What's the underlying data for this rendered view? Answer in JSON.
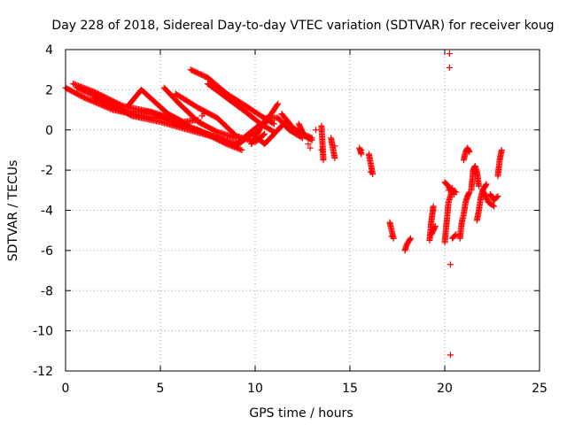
{
  "chart_data": {
    "type": "scatter",
    "title": "Day 228 of 2018, Sidereal Day-to-day VTEC variation (SDTVAR) for receiver koug",
    "xlabel": "GPS time / hours",
    "ylabel": "SDTVAR / TECUs",
    "xlim": [
      0,
      25
    ],
    "ylim": [
      -12,
      4
    ],
    "xticks": [
      0,
      5,
      10,
      15,
      20,
      25
    ],
    "yticks": [
      -12,
      -10,
      -8,
      -6,
      -4,
      -2,
      0,
      2,
      4
    ],
    "grid": true,
    "marker": "plus",
    "colors": {
      "points": "#ff0000",
      "grid": "#a0a0a0",
      "axes": "#000000"
    },
    "tracks": [
      {
        "name": "track-1",
        "x_start": 0.0,
        "x_end": 9.3,
        "points": [
          [
            0.0,
            2.1
          ],
          [
            1.0,
            1.6
          ],
          [
            2.5,
            1.0
          ],
          [
            4.0,
            0.7
          ],
          [
            5.5,
            0.5
          ],
          [
            7.0,
            0.0
          ],
          [
            8.5,
            -0.7
          ],
          [
            9.3,
            -1.0
          ]
        ]
      },
      {
        "name": "track-2",
        "x_start": 0.4,
        "x_end": 10.3,
        "points": [
          [
            0.4,
            2.3
          ],
          [
            1.5,
            1.9
          ],
          [
            3.0,
            1.2
          ],
          [
            4.5,
            0.9
          ],
          [
            6.0,
            0.3
          ],
          [
            7.5,
            -0.2
          ],
          [
            9.0,
            -0.7
          ],
          [
            10.3,
            0.3
          ]
        ]
      },
      {
        "name": "track-3",
        "x_start": 0.6,
        "x_end": 11.2,
        "points": [
          [
            0.6,
            2.1
          ],
          [
            2.0,
            1.5
          ],
          [
            3.5,
            0.7
          ],
          [
            5.0,
            0.4
          ],
          [
            6.5,
            0.0
          ],
          [
            8.0,
            -0.4
          ],
          [
            9.0,
            -0.8
          ],
          [
            10.5,
            0.3
          ],
          [
            11.2,
            1.3
          ]
        ]
      },
      {
        "name": "track-4",
        "x_start": 1.5,
        "x_end": 6.5,
        "points": [
          [
            1.5,
            1.6
          ],
          [
            2.5,
            1.1
          ],
          [
            3.3,
            0.9
          ],
          [
            4.5,
            0.9
          ],
          [
            5.5,
            0.6
          ],
          [
            6.5,
            0.2
          ]
        ]
      },
      {
        "name": "track-5",
        "x_start": 3.3,
        "x_end": 7.0,
        "points": [
          [
            3.3,
            1.2
          ],
          [
            4.0,
            2.0
          ],
          [
            4.7,
            1.4
          ],
          [
            5.4,
            0.8
          ],
          [
            6.2,
            0.4
          ],
          [
            7.0,
            0.5
          ]
        ]
      },
      {
        "name": "track-6",
        "x_start": 5.2,
        "x_end": 9.0,
        "points": [
          [
            5.2,
            2.1
          ],
          [
            6.0,
            1.3
          ],
          [
            7.0,
            0.4
          ],
          [
            8.0,
            -0.1
          ],
          [
            9.0,
            -0.4
          ]
        ]
      },
      {
        "name": "track-7",
        "x_start": 5.8,
        "x_end": 10.5,
        "points": [
          [
            5.8,
            1.8
          ],
          [
            7.0,
            1.1
          ],
          [
            8.0,
            0.6
          ],
          [
            9.0,
            -0.3
          ],
          [
            10.0,
            -0.6
          ],
          [
            10.5,
            -0.2
          ]
        ]
      },
      {
        "name": "track-8",
        "x_start": 6.6,
        "x_end": 11.0,
        "points": [
          [
            6.6,
            3.0
          ],
          [
            7.5,
            2.6
          ],
          [
            8.5,
            1.8
          ],
          [
            9.5,
            1.2
          ],
          [
            10.3,
            0.7
          ],
          [
            11.0,
            0.3
          ]
        ]
      },
      {
        "name": "track-9",
        "x_start": 7.5,
        "x_end": 11.0,
        "points": [
          [
            7.5,
            2.3
          ],
          [
            8.5,
            1.6
          ],
          [
            9.5,
            0.9
          ],
          [
            10.3,
            0.3
          ],
          [
            11.0,
            -0.1
          ]
        ]
      },
      {
        "name": "track-10",
        "x_start": 9.8,
        "x_end": 12.5,
        "points": [
          [
            9.8,
            -0.7
          ],
          [
            10.6,
            0.6
          ],
          [
            11.2,
            0.6
          ],
          [
            11.8,
            0.0
          ],
          [
            12.5,
            -0.4
          ]
        ]
      },
      {
        "name": "track-11",
        "x_start": 10.0,
        "x_end": 11.6,
        "points": [
          [
            10.0,
            -0.3
          ],
          [
            10.5,
            -0.7
          ],
          [
            11.0,
            -0.2
          ],
          [
            11.6,
            0.4
          ]
        ]
      },
      {
        "name": "track-12",
        "x_start": 11.4,
        "x_end": 13.0,
        "points": [
          [
            11.4,
            0.8
          ],
          [
            12.0,
            0.1
          ],
          [
            12.5,
            -0.2
          ],
          [
            13.0,
            -0.4
          ]
        ]
      },
      {
        "name": "track-13",
        "x_start": 12.3,
        "x_end": 13.0,
        "points": [
          [
            12.3,
            0.3
          ],
          [
            12.6,
            -0.3
          ],
          [
            13.0,
            -0.5
          ]
        ]
      },
      {
        "name": "track-14",
        "x_start": 13.5,
        "x_end": 13.6,
        "points": [
          [
            13.5,
            0.2
          ],
          [
            13.6,
            -1.5
          ]
        ]
      },
      {
        "name": "track-15",
        "x_start": 14.0,
        "x_end": 14.2,
        "points": [
          [
            14.0,
            -0.4
          ],
          [
            14.2,
            -1.4
          ]
        ]
      },
      {
        "name": "track-16",
        "x_start": 15.5,
        "x_end": 15.6,
        "points": [
          [
            15.5,
            -0.9
          ],
          [
            15.6,
            -1.2
          ]
        ]
      },
      {
        "name": "track-17",
        "x_start": 16.0,
        "x_end": 16.2,
        "points": [
          [
            16.0,
            -1.2
          ],
          [
            16.2,
            -2.2
          ]
        ]
      },
      {
        "name": "track-18",
        "x_start": 17.1,
        "x_end": 17.3,
        "points": [
          [
            17.1,
            -4.6
          ],
          [
            17.2,
            -5.0
          ],
          [
            17.3,
            -5.4
          ]
        ]
      },
      {
        "name": "track-19",
        "x_start": 17.9,
        "x_end": 18.2,
        "points": [
          [
            17.9,
            -6.0
          ],
          [
            18.0,
            -5.7
          ],
          [
            18.2,
            -5.4
          ]
        ]
      },
      {
        "name": "track-20",
        "x_start": 19.2,
        "x_end": 19.4,
        "points": [
          [
            19.2,
            -5.5
          ],
          [
            19.3,
            -4.5
          ],
          [
            19.4,
            -3.8
          ]
        ]
      },
      {
        "name": "track-21",
        "x_start": 19.3,
        "x_end": 19.5,
        "points": [
          [
            19.3,
            -5.2
          ],
          [
            19.5,
            -4.8
          ]
        ]
      },
      {
        "name": "track-22",
        "x_start": 20.0,
        "x_end": 20.6,
        "points": [
          [
            20.0,
            -5.6
          ],
          [
            20.1,
            -4.6
          ],
          [
            20.2,
            -3.6
          ],
          [
            20.4,
            -3.0
          ],
          [
            20.6,
            -3.1
          ]
        ]
      },
      {
        "name": "track-23",
        "x_start": 20.0,
        "x_end": 20.3,
        "points": [
          [
            20.0,
            -2.6
          ],
          [
            20.2,
            -2.8
          ],
          [
            20.3,
            -3.0
          ]
        ]
      },
      {
        "name": "track-24",
        "x_start": 20.4,
        "x_end": 20.6,
        "points": [
          [
            20.4,
            -5.4
          ],
          [
            20.5,
            -5.3
          ],
          [
            20.6,
            -5.2
          ]
        ]
      },
      {
        "name": "track-25",
        "x_start": 20.8,
        "x_end": 21.3,
        "points": [
          [
            20.8,
            -5.4
          ],
          [
            20.9,
            -4.6
          ],
          [
            21.0,
            -4.2
          ],
          [
            21.1,
            -3.6
          ],
          [
            21.2,
            -3.3
          ],
          [
            21.3,
            -3.1
          ]
        ]
      },
      {
        "name": "track-26",
        "x_start": 21.0,
        "x_end": 21.3,
        "points": [
          [
            21.0,
            -1.5
          ],
          [
            21.1,
            -1.1
          ],
          [
            21.2,
            -0.9
          ],
          [
            21.3,
            -1.1
          ]
        ]
      },
      {
        "name": "track-27",
        "x_start": 21.4,
        "x_end": 21.8,
        "points": [
          [
            21.4,
            -3.0
          ],
          [
            21.5,
            -2.0
          ],
          [
            21.6,
            -1.8
          ],
          [
            21.7,
            -2.1
          ],
          [
            21.8,
            -2.8
          ]
        ]
      },
      {
        "name": "track-28",
        "x_start": 21.7,
        "x_end": 22.2,
        "points": [
          [
            21.7,
            -4.5
          ],
          [
            21.8,
            -4.0
          ],
          [
            21.9,
            -3.4
          ],
          [
            22.0,
            -3.0
          ],
          [
            22.2,
            -2.7
          ]
        ]
      },
      {
        "name": "track-29",
        "x_start": 22.0,
        "x_end": 22.6,
        "points": [
          [
            22.0,
            -3.0
          ],
          [
            22.3,
            -3.6
          ],
          [
            22.6,
            -3.8
          ]
        ]
      },
      {
        "name": "track-30",
        "x_start": 22.4,
        "x_end": 22.8,
        "points": [
          [
            22.4,
            -3.2
          ],
          [
            22.6,
            -3.5
          ],
          [
            22.8,
            -3.3
          ]
        ]
      },
      {
        "name": "track-31",
        "x_start": 22.8,
        "x_end": 23.0,
        "points": [
          [
            22.8,
            -2.3
          ],
          [
            22.9,
            -1.5
          ],
          [
            23.0,
            -1.0
          ]
        ]
      }
    ],
    "isolated_points": [
      [
        20.25,
        3.8
      ],
      [
        20.25,
        3.1
      ],
      [
        20.3,
        -6.7
      ],
      [
        20.3,
        -11.2
      ],
      [
        20.2,
        -3.0
      ],
      [
        20.5,
        -3.2
      ],
      [
        13.5,
        -1.0
      ],
      [
        13.2,
        0.0
      ],
      [
        14.2,
        -0.8
      ],
      [
        15.6,
        -1.0
      ],
      [
        16.1,
        -2.1
      ],
      [
        17.2,
        -5.3
      ],
      [
        7.2,
        0.7
      ],
      [
        7.3,
        0.8
      ],
      [
        19.4,
        -4.0
      ],
      [
        20.4,
        -2.9
      ],
      [
        12.9,
        -0.9
      ],
      [
        12.8,
        -0.7
      ]
    ]
  }
}
